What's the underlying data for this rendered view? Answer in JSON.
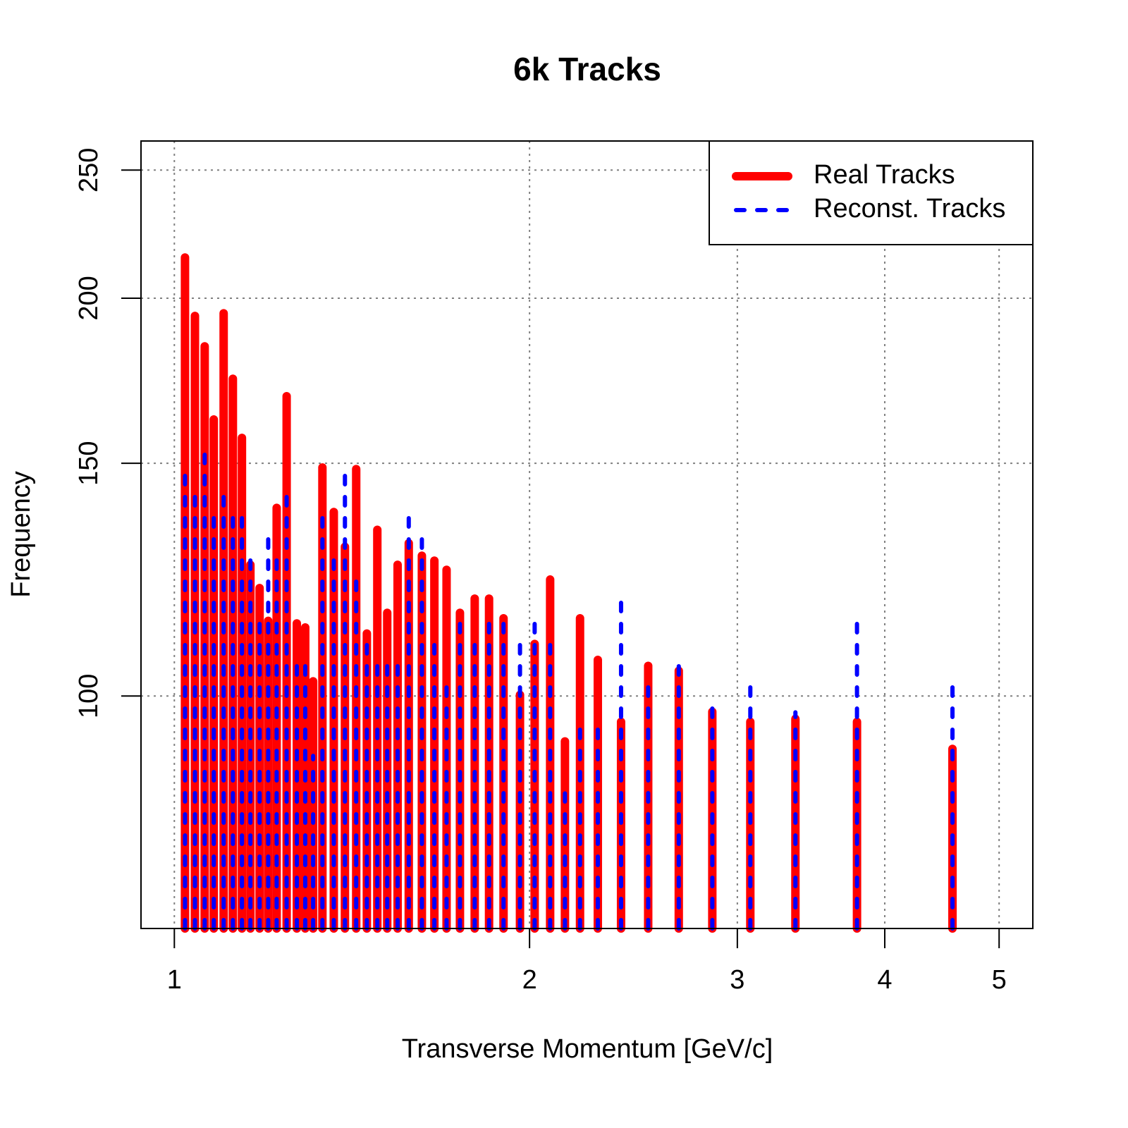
{
  "chart_data": {
    "type": "line",
    "plot_style": "h",
    "title": "6k Tracks",
    "x_label": "Transverse Momentum [GeV/c]",
    "y_label": "Frequency",
    "log_x": true,
    "log_y": true,
    "grid": true,
    "legend_position": "topright",
    "xlim": [
      0.937,
      5.34
    ],
    "xticks": [
      1,
      2,
      3,
      4,
      5
    ],
    "ylim": [
      66.7,
      263
    ],
    "yticks": [
      100,
      150,
      200,
      250
    ],
    "x": [
      1.021,
      1.041,
      1.061,
      1.08,
      1.101,
      1.121,
      1.141,
      1.16,
      1.181,
      1.201,
      1.221,
      1.245,
      1.27,
      1.291,
      1.311,
      1.335,
      1.365,
      1.395,
      1.426,
      1.456,
      1.486,
      1.515,
      1.546,
      1.58,
      1.621,
      1.661,
      1.701,
      1.746,
      1.797,
      1.848,
      1.901,
      1.963,
      2.02,
      2.082,
      2.143,
      2.207,
      2.285,
      2.391,
      2.521,
      2.676,
      2.857,
      3.077,
      3.36,
      3.789,
      4.565
    ],
    "series": [
      {
        "name": "Real Tracks",
        "color": "#ff0000",
        "line_style": "solid",
        "values": [
          214.7,
          193.9,
          183.9,
          161.9,
          194.8,
          173.8,
          156.8,
          125.7,
          120.7,
          114.0,
          138.8,
          168.6,
          113.5,
          112.7,
          102.6,
          148.9,
          137.8,
          129.7,
          148.5,
          111.5,
          133.6,
          115.6,
          125.7,
          130.5,
          127.7,
          126.6,
          124.6,
          115.6,
          118.5,
          118.5,
          114.5,
          100.2,
          109.5,
          122.5,
          92.4,
          114.5,
          106.5,
          95.6,
          105.4,
          104.5,
          97.3,
          95.6,
          96.1,
          95.6,
          91.2
        ]
      },
      {
        "name": "Reconst. Tracks",
        "color": "#0000ff",
        "line_style": "dotted",
        "values": [
          148.5,
          143.1,
          154.1,
          138.0,
          143.1,
          138.0,
          138.0,
          127.9,
          114.0,
          132.7,
          127.4,
          143.1,
          105.9,
          105.9,
          90.1,
          138.0,
          127.9,
          147.2,
          123.1,
          109.9,
          105.9,
          105.9,
          105.9,
          138.0,
          132.7,
          109.9,
          101.5,
          114.0,
          109.9,
          114.0,
          114.0,
          109.3,
          114.0,
          109.3,
          84.4,
          94.6,
          94.6,
          118.3,
          102.1,
          105.9,
          98.0,
          102.1,
          97.2,
          114.0,
          102.1
        ]
      }
    ]
  }
}
